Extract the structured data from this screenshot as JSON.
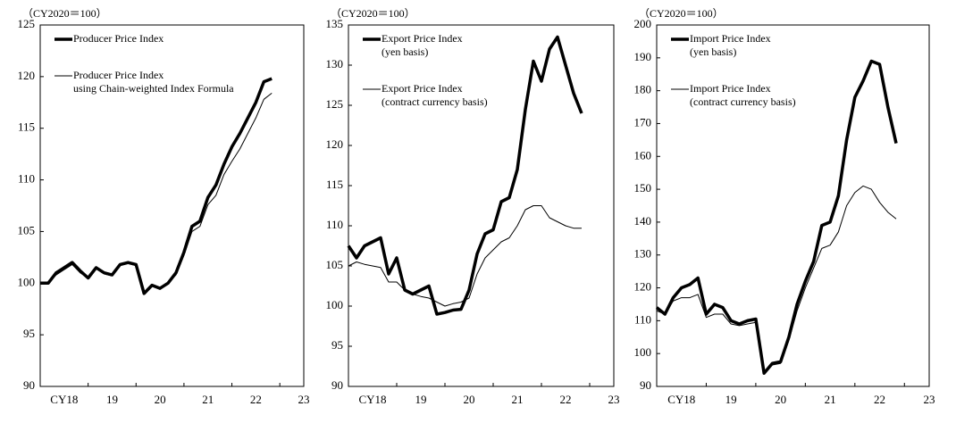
{
  "chart_data": [
    {
      "type": "line",
      "y_unit": "（CY2020＝100）",
      "x": [
        2018.0,
        2018.167,
        2018.333,
        2018.5,
        2018.667,
        2018.833,
        2019.0,
        2019.167,
        2019.333,
        2019.5,
        2019.667,
        2019.833,
        2020.0,
        2020.167,
        2020.333,
        2020.5,
        2020.667,
        2020.833,
        2021.0,
        2021.167,
        2021.333,
        2021.5,
        2021.667,
        2021.833,
        2022.0,
        2022.167,
        2022.333,
        2022.5,
        2022.667,
        2022.833
      ],
      "xlim": [
        2018,
        2023.5
      ],
      "xticks": [
        {
          "value": 2018.5,
          "label": "CY18"
        },
        {
          "value": 2019.5,
          "label": "19"
        },
        {
          "value": 2020.5,
          "label": "20"
        },
        {
          "value": 2021.5,
          "label": "21"
        },
        {
          "value": 2022.5,
          "label": "22"
        },
        {
          "value": 2023.5,
          "label": "23"
        }
      ],
      "ylim": [
        90,
        125
      ],
      "yticks": [
        90,
        95,
        100,
        105,
        110,
        115,
        120,
        125
      ],
      "series": [
        {
          "name": [
            "Producer Price Index"
          ],
          "color": "#000000",
          "width": 3.5,
          "values": [
            100,
            100,
            101,
            101.5,
            102,
            101.2,
            100.5,
            101.5,
            101,
            100.8,
            101.8,
            102,
            101.8,
            99,
            99.8,
            99.5,
            100,
            101,
            103,
            105.5,
            106,
            108.3,
            109.5,
            111.5,
            113.2,
            114.5,
            116,
            117.5,
            119.5,
            119.8
          ]
        },
        {
          "name": [
            "Producer Price Index",
            "using Chain-weighted Index Formula"
          ],
          "color": "#000000",
          "width": 1,
          "values": [
            100,
            100,
            100.8,
            101.3,
            101.8,
            101,
            100.5,
            101.4,
            100.9,
            100.7,
            101.7,
            101.9,
            101.7,
            99,
            99.7,
            99.4,
            100,
            100.8,
            102.7,
            105,
            105.5,
            107.6,
            108.5,
            110.5,
            111.8,
            113,
            114.5,
            116,
            117.8,
            118.4
          ]
        }
      ]
    },
    {
      "type": "line",
      "y_unit": "（CY2020＝100）",
      "x": [
        2018.0,
        2018.167,
        2018.333,
        2018.5,
        2018.667,
        2018.833,
        2019.0,
        2019.167,
        2019.333,
        2019.5,
        2019.667,
        2019.833,
        2020.0,
        2020.167,
        2020.333,
        2020.5,
        2020.667,
        2020.833,
        2021.0,
        2021.167,
        2021.333,
        2021.5,
        2021.667,
        2021.833,
        2022.0,
        2022.167,
        2022.333,
        2022.5,
        2022.667,
        2022.833
      ],
      "xlim": [
        2018,
        2023.5
      ],
      "xticks": [
        {
          "value": 2018.5,
          "label": "CY18"
        },
        {
          "value": 2019.5,
          "label": "19"
        },
        {
          "value": 2020.5,
          "label": "20"
        },
        {
          "value": 2021.5,
          "label": "21"
        },
        {
          "value": 2022.5,
          "label": "22"
        },
        {
          "value": 2023.5,
          "label": "23"
        }
      ],
      "ylim": [
        90,
        135
      ],
      "yticks": [
        90,
        95,
        100,
        105,
        110,
        115,
        120,
        125,
        130,
        135
      ],
      "series": [
        {
          "name": [
            "Export Price Index",
            "(yen basis)"
          ],
          "color": "#000000",
          "width": 3.5,
          "values": [
            107.5,
            106,
            107.5,
            108,
            108.5,
            104,
            106,
            102,
            101.5,
            102,
            102.5,
            99,
            99.2,
            99.5,
            99.6,
            102,
            106.5,
            109,
            109.5,
            113,
            113.5,
            117,
            124.5,
            130.5,
            128,
            132,
            133.5,
            130,
            126.5,
            124
          ]
        },
        {
          "name": [
            "Export Price Index",
            "(contract currency basis)"
          ],
          "color": "#000000",
          "width": 1,
          "values": [
            105,
            105.5,
            105.2,
            105,
            104.8,
            103,
            103,
            102,
            101.5,
            101.2,
            101,
            100.5,
            100,
            100.3,
            100.5,
            101,
            104,
            106,
            107,
            108,
            108.5,
            110,
            112,
            112.5,
            112.5,
            111,
            110.5,
            110,
            109.7,
            109.7
          ]
        }
      ]
    },
    {
      "type": "line",
      "y_unit": "（CY2020＝100）",
      "x": [
        2018.0,
        2018.167,
        2018.333,
        2018.5,
        2018.667,
        2018.833,
        2019.0,
        2019.167,
        2019.333,
        2019.5,
        2019.667,
        2019.833,
        2020.0,
        2020.167,
        2020.333,
        2020.5,
        2020.667,
        2020.833,
        2021.0,
        2021.167,
        2021.333,
        2021.5,
        2021.667,
        2021.833,
        2022.0,
        2022.167,
        2022.333,
        2022.5,
        2022.667,
        2022.833
      ],
      "xlim": [
        2018,
        2023.5
      ],
      "xticks": [
        {
          "value": 2018.5,
          "label": "CY18"
        },
        {
          "value": 2019.5,
          "label": "19"
        },
        {
          "value": 2020.5,
          "label": "20"
        },
        {
          "value": 2021.5,
          "label": "21"
        },
        {
          "value": 2022.5,
          "label": "22"
        },
        {
          "value": 2023.5,
          "label": "23"
        }
      ],
      "ylim": [
        90,
        200
      ],
      "yticks": [
        90,
        100,
        110,
        120,
        130,
        140,
        150,
        160,
        170,
        180,
        190,
        200
      ],
      "series": [
        {
          "name": [
            "Import Price Index",
            "(yen basis)"
          ],
          "color": "#000000",
          "width": 3.5,
          "values": [
            114,
            112,
            117,
            120,
            121,
            123,
            112,
            115,
            114,
            110,
            109,
            110,
            110.5,
            94,
            97,
            97.5,
            105,
            115,
            122,
            128,
            139,
            140,
            148,
            165,
            178,
            183,
            189,
            188,
            175,
            164
          ]
        },
        {
          "name": [
            "Import Price Index",
            "(contract currency basis)"
          ],
          "color": "#000000",
          "width": 1,
          "values": [
            113,
            112,
            116,
            117,
            117,
            118,
            111,
            112,
            112,
            109,
            108.5,
            109,
            109.5,
            94,
            96.5,
            97,
            104,
            113,
            120,
            126,
            132,
            133,
            137,
            145,
            149,
            151,
            150,
            146,
            143,
            141
          ]
        }
      ]
    }
  ]
}
